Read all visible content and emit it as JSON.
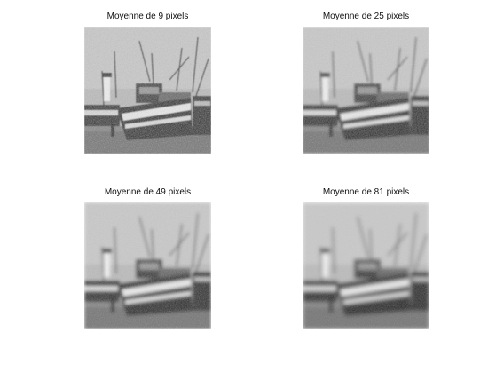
{
  "figure": {
    "panels": [
      {
        "title": "Moyenne de 9 pixels",
        "blur": 0.6
      },
      {
        "title": "Moyenne de 25 pixels",
        "blur": 1.2
      },
      {
        "title": "Moyenne de 49 pixels",
        "blur": 1.8
      },
      {
        "title": "Moyenne de 81 pixels",
        "blur": 2.4
      }
    ]
  }
}
